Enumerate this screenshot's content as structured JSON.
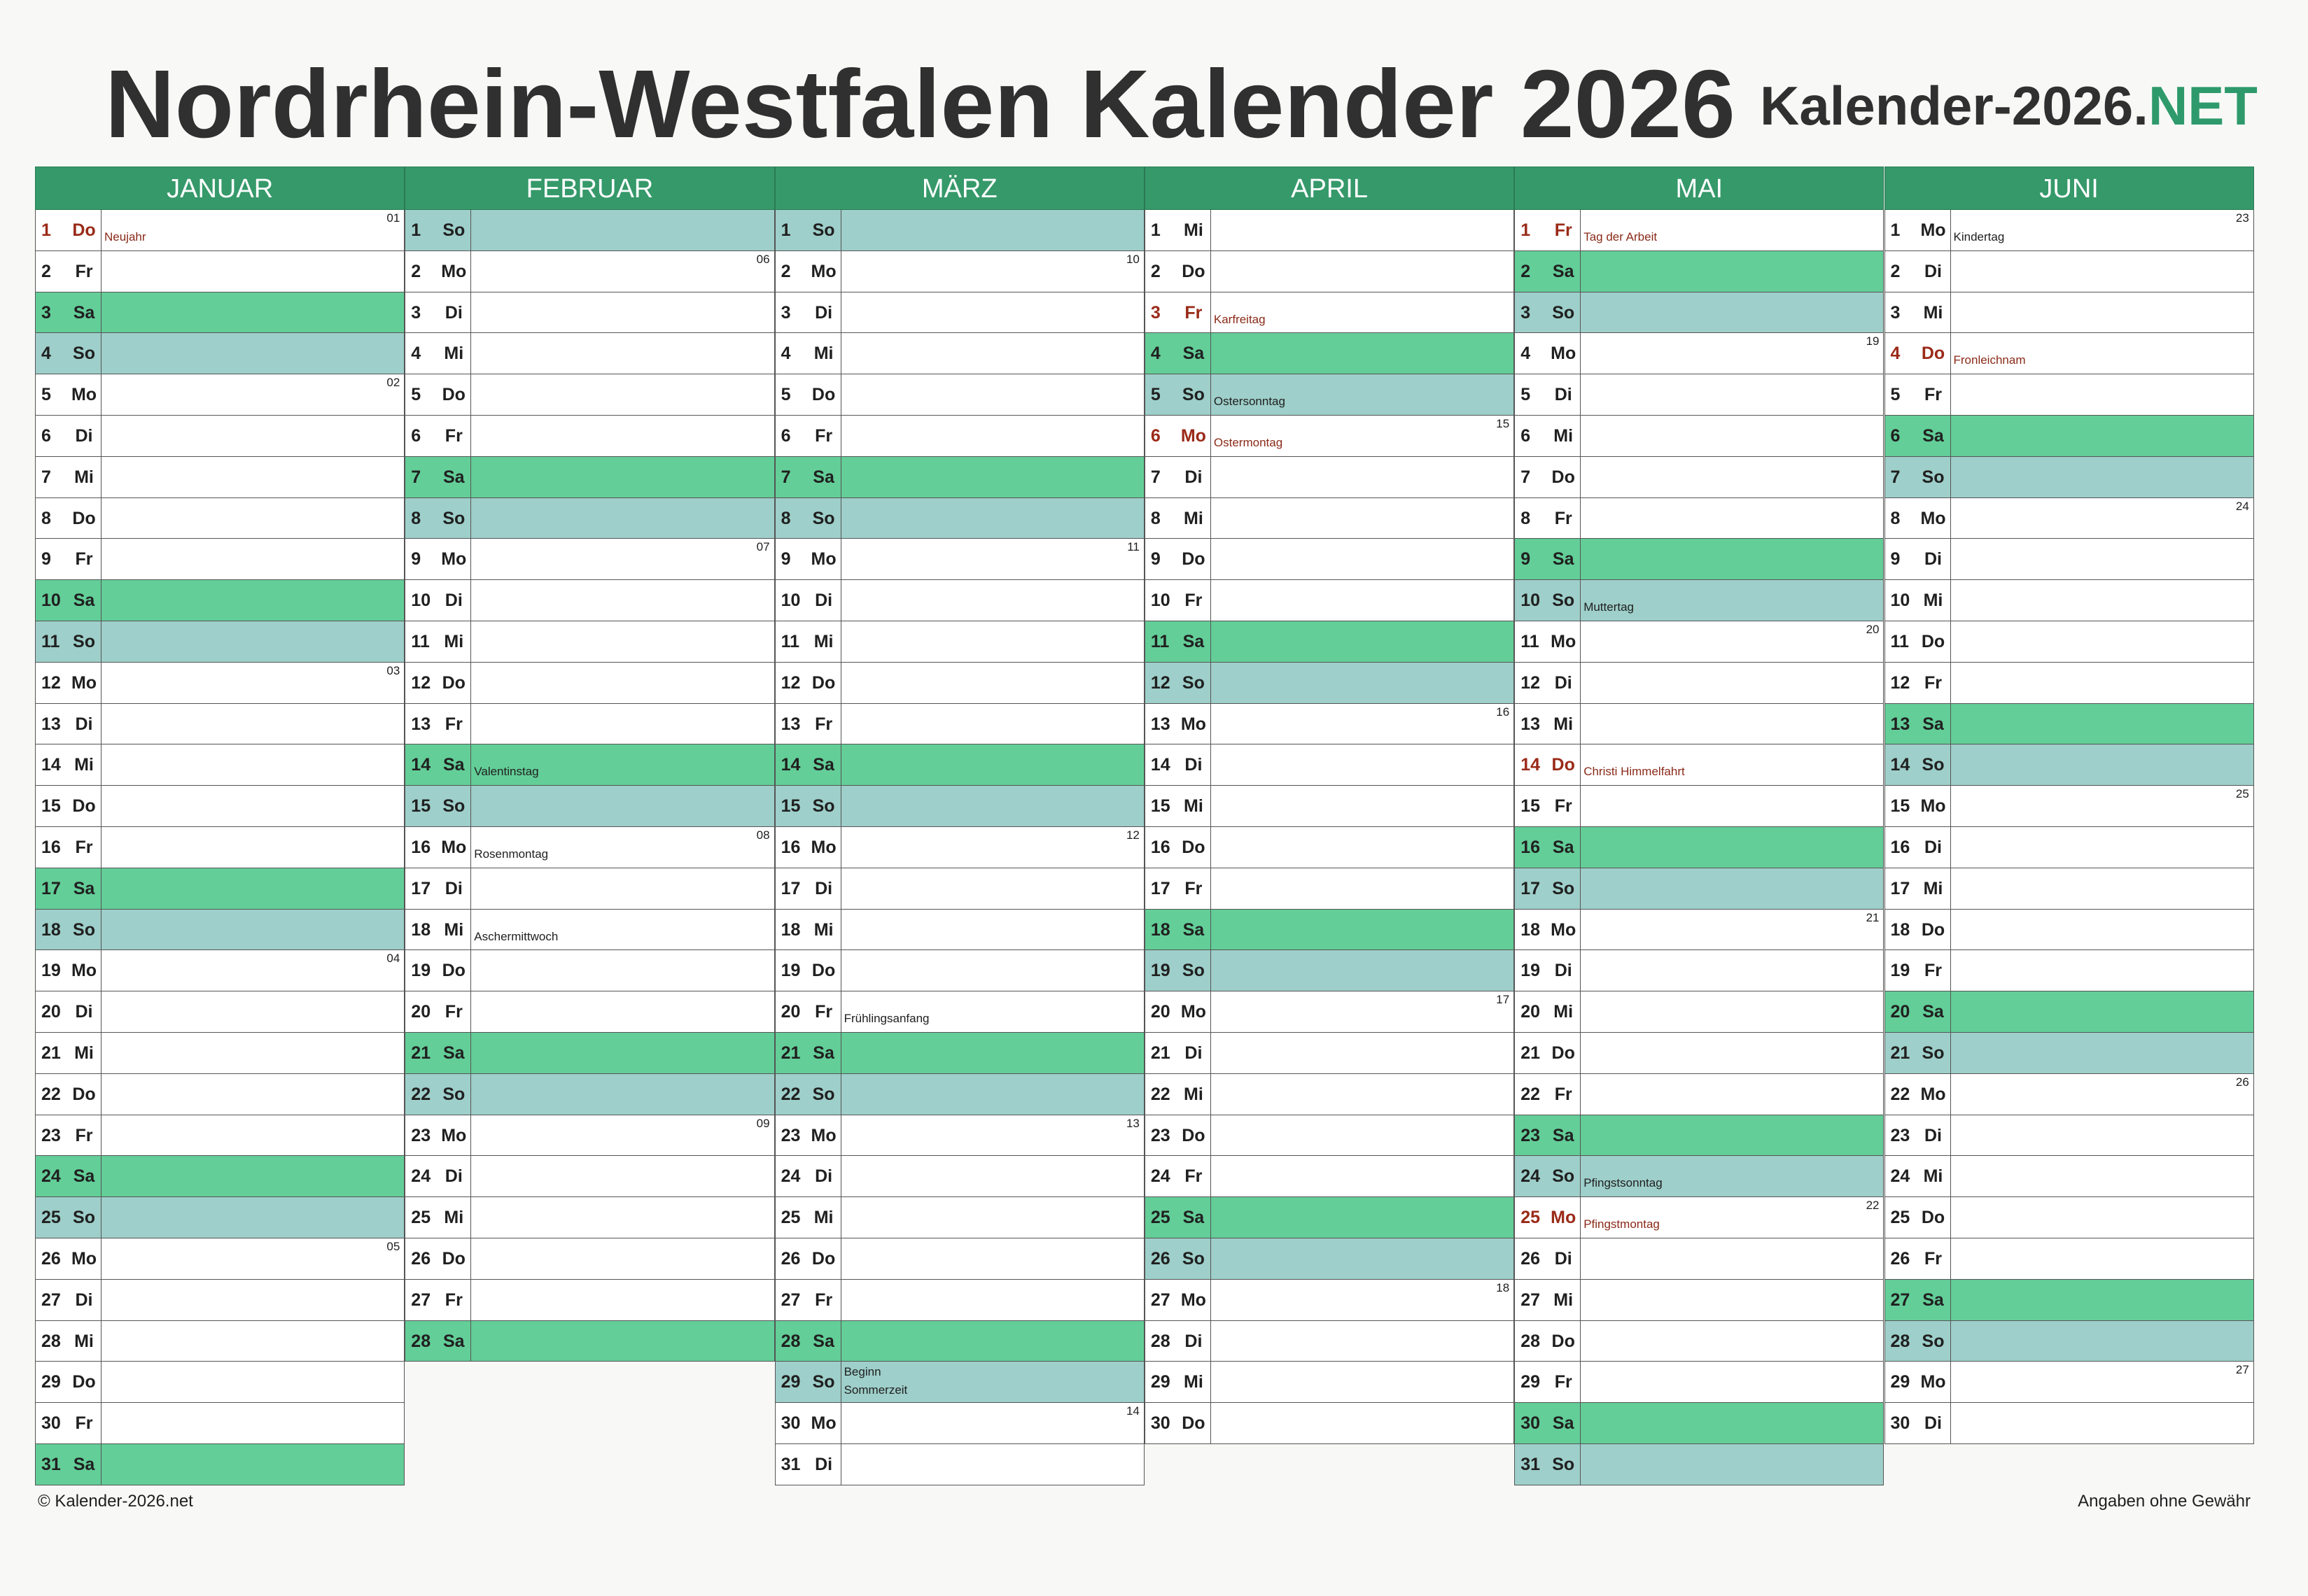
{
  "title": "Nordrhein-Westfalen Kalender 2026",
  "brand": {
    "main": "Kalender-2026.",
    "accent": ".NET",
    "accent_text": "NET"
  },
  "footer": {
    "copyright": "© Kalender-2026.net",
    "disclaimer": "Angaben ohne Gewähr"
  },
  "colors": {
    "header": "#36996a",
    "saturday": "#63ce98",
    "sunday": "#9ecfca",
    "holiday_text": "#9a2a18",
    "brand_accent": "#2e9a6b"
  },
  "months": [
    {
      "name": "JANUAR",
      "start": 4,
      "days": 31
    },
    {
      "name": "FEBRUAR",
      "start": 0,
      "days": 28
    },
    {
      "name": "MÄRZ",
      "start": 0,
      "days": 31
    },
    {
      "name": "APRIL",
      "start": 3,
      "days": 30
    },
    {
      "name": "MAI",
      "start": 5,
      "days": 31
    },
    {
      "name": "JUNI",
      "start": 1,
      "days": 30
    }
  ],
  "weekdays": [
    "So",
    "Mo",
    "Di",
    "Mi",
    "Do",
    "Fr",
    "Sa"
  ],
  "holidays": {
    "0-1": "Neujahr",
    "3-3": "Karfreitag",
    "3-6": "Ostermontag",
    "4-1": "Tag der Arbeit",
    "4-14": "Christi Himmelfahrt",
    "4-25": "Pfingstmontag",
    "5-4": "Fronleichnam"
  },
  "notes": {
    "1-14": "Valentinstag",
    "1-16": "Rosenmontag",
    "1-18": "Aschermittwoch",
    "2-20": "Frühlingsanfang",
    "2-29": [
      "Beginn",
      "Sommerzeit"
    ],
    "3-5": "Ostersonntag",
    "4-10": "Muttertag",
    "4-24": "Pfingstsonntag",
    "5-1": "Kindertag"
  },
  "week_numbers": {
    "0": {
      "1": "01",
      "5": "02",
      "12": "03",
      "19": "04",
      "26": "05"
    },
    "1": {
      "2": "06",
      "9": "07",
      "16": "08",
      "23": "09"
    },
    "2": {
      "2": "10",
      "9": "11",
      "16": "12",
      "23": "13",
      "30": "14"
    },
    "3": {
      "6": "15",
      "13": "16",
      "20": "17",
      "27": "18"
    },
    "4": {
      "4": "19",
      "11": "20",
      "18": "21",
      "25": "22"
    },
    "5": {
      "1": "23",
      "8": "24",
      "15": "25",
      "22": "26",
      "29": "27"
    }
  }
}
